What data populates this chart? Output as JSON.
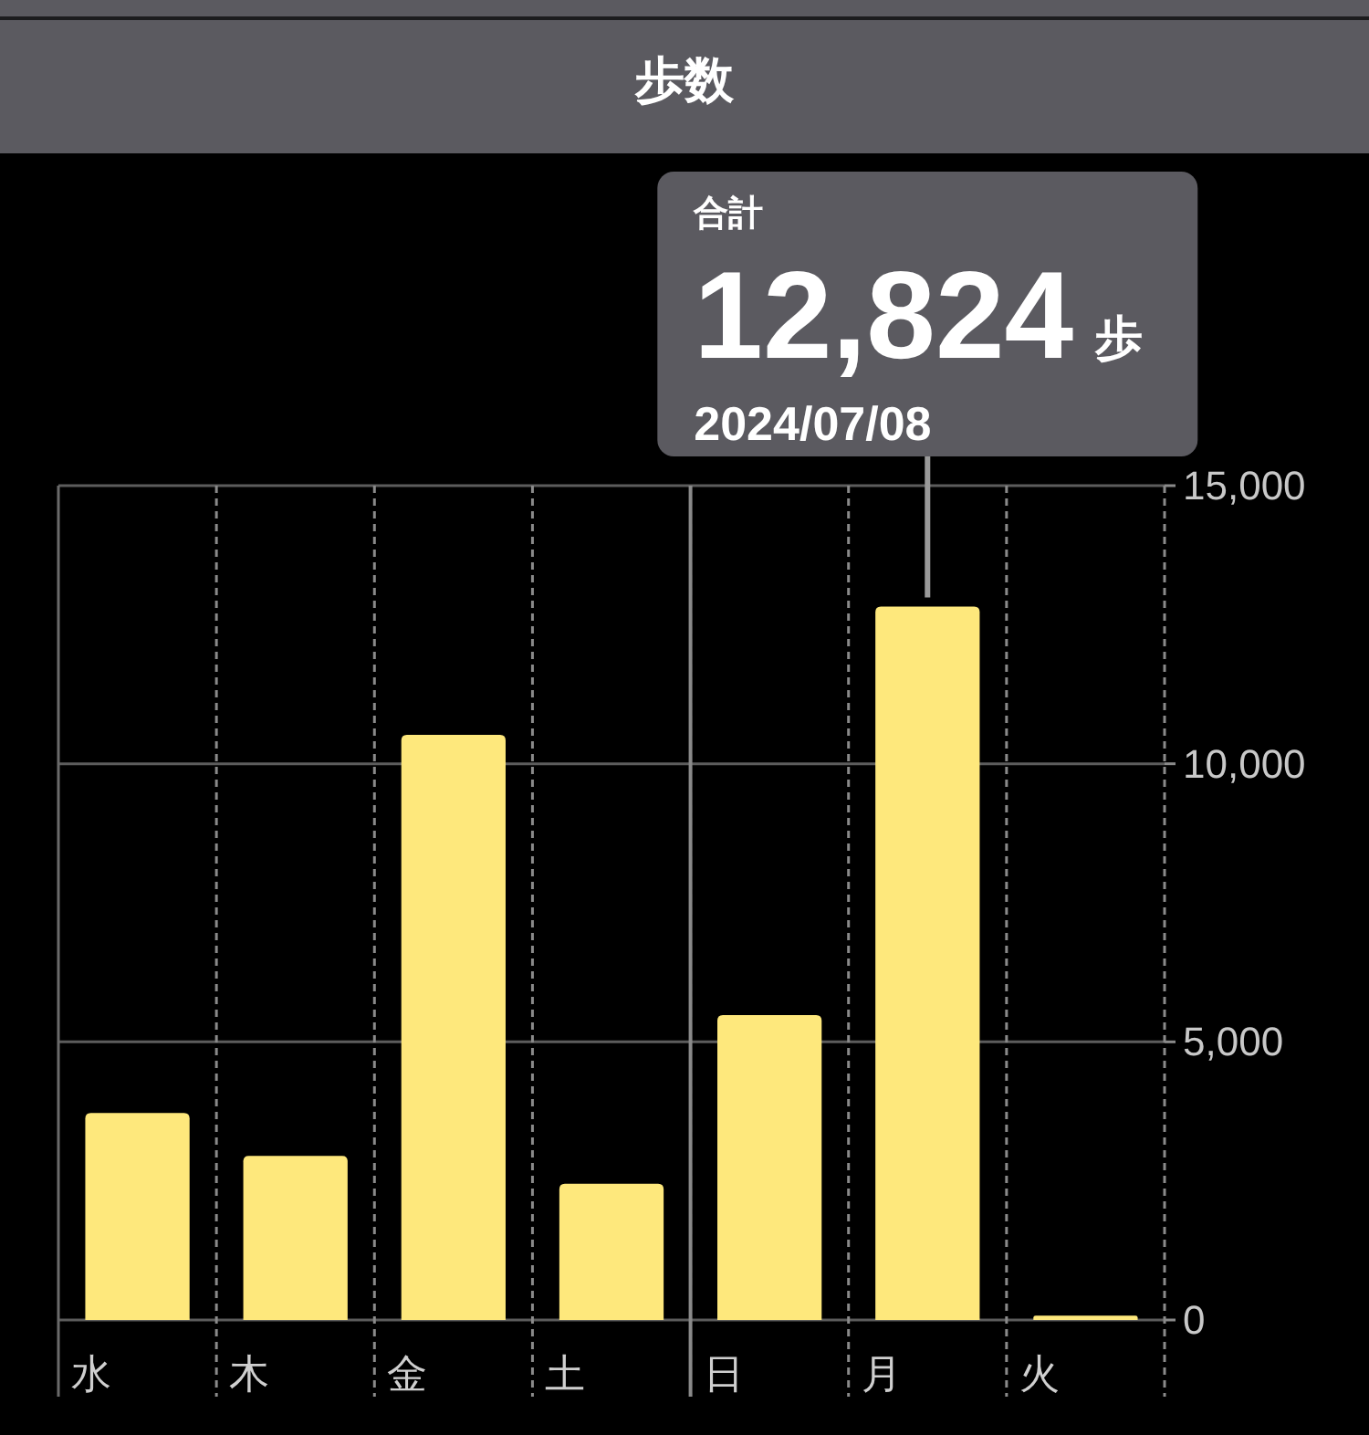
{
  "chart_data": {
    "type": "bar",
    "title": "歩数",
    "categories": [
      "水",
      "木",
      "金",
      "土",
      "日",
      "月",
      "火"
    ],
    "values": [
      3720,
      2950,
      10520,
      2450,
      5480,
      12824,
      80
    ],
    "color": "#fee87c",
    "value_labels": [
      null,
      null,
      null,
      null,
      null,
      "12,824",
      null
    ],
    "annotations": [
      "合計",
      "歩",
      "2024/07/08"
    ],
    "ylim": [
      0,
      15000
    ],
    "yticks": [
      0,
      {
        "value": 5000,
        "label": "5,000"
      },
      {
        "value": 10000,
        "label": "10,000"
      },
      {
        "value": 15000,
        "label": "15,000"
      }
    ],
    "grid": true,
    "ref_lines": [
      {
        "axis": "x",
        "value": "日",
        "line_style": "solid"
      }
    ]
  }
}
